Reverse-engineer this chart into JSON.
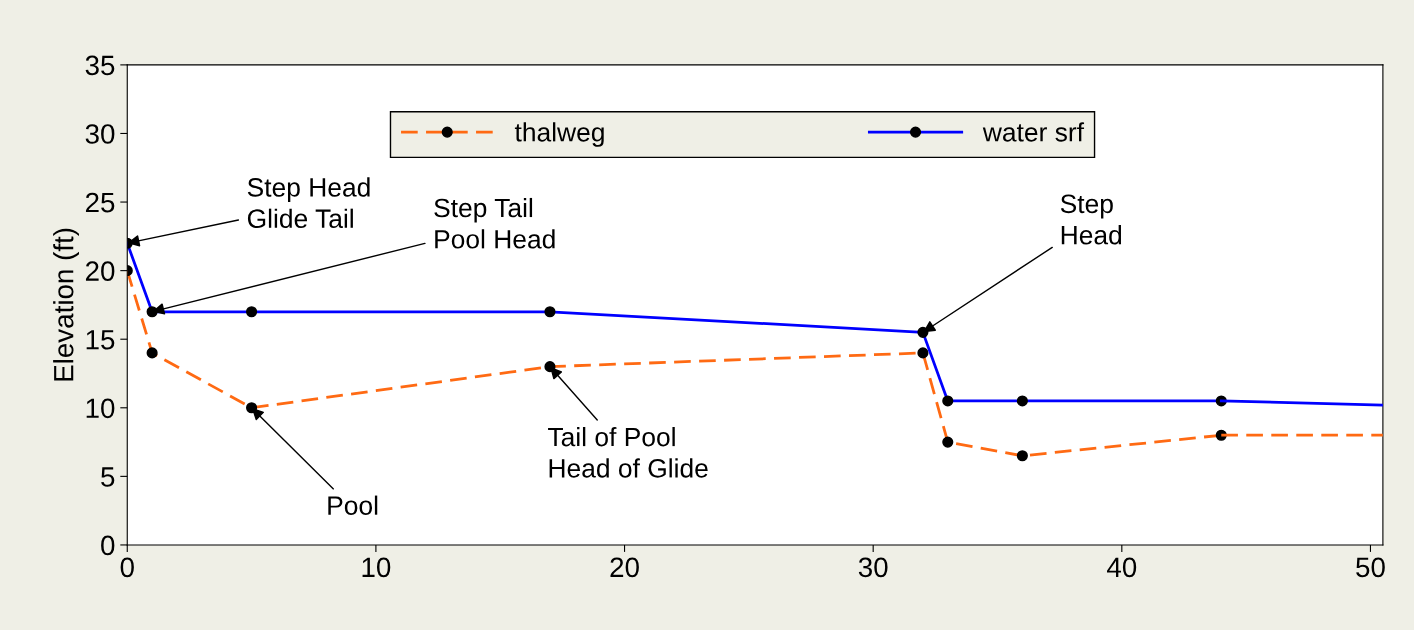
{
  "chart_data": {
    "type": "line",
    "ylabel": "Elevation (ft)",
    "xlim": [
      0,
      50.5
    ],
    "ylim": [
      0,
      35
    ],
    "xticks": [
      0,
      10,
      20,
      30,
      40,
      50
    ],
    "yticks": [
      0,
      5,
      10,
      15,
      20,
      25,
      30,
      35
    ],
    "grid": false,
    "legend": "top",
    "marker": "circle",
    "series": [
      {
        "name": "thalweg",
        "color": "#ff6a13",
        "line_style": "dashed",
        "x": [
          0,
          1,
          5,
          17,
          32,
          33,
          36,
          44
        ],
        "values": [
          20,
          14,
          10,
          13,
          14,
          7.5,
          6.5,
          8
        ]
      },
      {
        "name": "water srf",
        "color": "#0000ff",
        "line_style": "solid",
        "x": [
          0,
          1,
          5,
          17,
          32,
          33,
          36,
          44
        ],
        "values": [
          22,
          17,
          17,
          17,
          15.5,
          10.5,
          10.5,
          10.5
        ]
      },
      {
        "color": "#ff6a13",
        "line_style": "dashed",
        "marker": "none",
        "x": [
          44,
          50.5
        ],
        "values": [
          8,
          8
        ]
      },
      {
        "color": "#0000ff",
        "line_style": "solid",
        "marker": "none",
        "x": [
          44,
          50.5
        ],
        "values": [
          10.5,
          10.2
        ]
      }
    ],
    "annotations": [
      {
        "text": "Step Head\nGlide Tail",
        "x": 0,
        "y": 22
      },
      {
        "text": "Step Tail\nPool Head",
        "x": 1,
        "y": 17
      },
      {
        "text": "Pool",
        "x": 5,
        "y": 10
      },
      {
        "text": "Tail of Pool\nHead of Glide",
        "x": 17,
        "y": 13
      },
      {
        "text": "Step\nHead",
        "x": 32,
        "y": 15.5
      }
    ]
  }
}
